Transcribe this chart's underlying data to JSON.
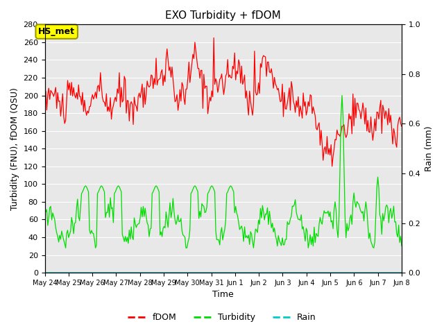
{
  "title": "EXO Turbidity + fDOM",
  "xlabel": "Time",
  "ylabel_left": "Turbidity (FNU), fDOM (QSU)",
  "ylabel_right": "Rain (mm)",
  "ylim_left": [
    0,
    280
  ],
  "ylim_right": [
    0,
    1.0
  ],
  "yticks_left": [
    0,
    20,
    40,
    60,
    80,
    100,
    120,
    140,
    160,
    180,
    200,
    220,
    240,
    260,
    280
  ],
  "yticks_right": [
    0.0,
    0.2,
    0.4,
    0.6,
    0.8,
    1.0
  ],
  "bg_color": "#e8e8e8",
  "annotation_text": "HS_met",
  "annotation_color": "#ffff00",
  "annotation_border": "#999900",
  "fdom_color": "#ff0000",
  "turbidity_color": "#00dd00",
  "rain_color": "#00cccc",
  "xtick_labels": [
    "May 24",
    "May 25",
    "May 26",
    "May 27",
    "May 28",
    "May 29",
    "May 30",
    "May 31",
    "Jun 1",
    "Jun 2",
    "Jun 3",
    "Jun 4",
    "Jun 5",
    "Jun 6",
    "Jun 7",
    "Jun 8"
  ]
}
